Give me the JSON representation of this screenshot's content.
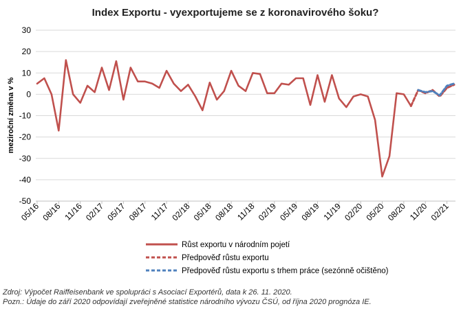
{
  "chart_data": {
    "type": "line",
    "title": "Index Exportu - vyexportujeme se z koronavirového šoku?",
    "ylabel": "meziroční změna v %",
    "xlabel": "",
    "ylim": [
      -50,
      30
    ],
    "yticks": [
      30,
      20,
      10,
      0,
      -10,
      -20,
      -30,
      -40,
      -50
    ],
    "grid": "horizontal",
    "legend_position": "bottom",
    "x_start": "2016-05",
    "xtick_labels": [
      "05/16",
      "08/16",
      "11/16",
      "02/17",
      "05/17",
      "08/17",
      "11/17",
      "02/18",
      "05/18",
      "08/18",
      "11/18",
      "02/19",
      "05/19",
      "08/19",
      "11/19",
      "02/20",
      "05/20",
      "08/20",
      "11/20",
      "02/21"
    ],
    "series": [
      {
        "name": "Růst exportu v národním pojetí",
        "color": "#c0504d",
        "style": "solid",
        "x": [
          "2016-05",
          "2016-06",
          "2016-07",
          "2016-08",
          "2016-09",
          "2016-10",
          "2016-11",
          "2016-12",
          "2017-01",
          "2017-02",
          "2017-03",
          "2017-04",
          "2017-05",
          "2017-06",
          "2017-07",
          "2017-08",
          "2017-09",
          "2017-10",
          "2017-11",
          "2017-12",
          "2018-01",
          "2018-02",
          "2018-03",
          "2018-04",
          "2018-05",
          "2018-06",
          "2018-07",
          "2018-08",
          "2018-09",
          "2018-10",
          "2018-11",
          "2018-12",
          "2019-01",
          "2019-02",
          "2019-03",
          "2019-04",
          "2019-05",
          "2019-06",
          "2019-07",
          "2019-08",
          "2019-09",
          "2019-10",
          "2019-11",
          "2019-12",
          "2020-01",
          "2020-02",
          "2020-03",
          "2020-04",
          "2020-05",
          "2020-06",
          "2020-07",
          "2020-08",
          "2020-09"
        ],
        "values": [
          5,
          7.5,
          0,
          -17,
          16,
          0,
          -4,
          4,
          1,
          12.5,
          2,
          15.5,
          -2.5,
          12.5,
          6,
          6,
          5,
          3,
          11,
          5,
          1.5,
          4.5,
          -1,
          -7.5,
          5.5,
          -2.5,
          1.5,
          11,
          4,
          1.5,
          10,
          9.5,
          0.5,
          0.5,
          5,
          4.5,
          7.5,
          7.5,
          -5,
          9,
          -3.5,
          9,
          -2,
          -6,
          -1,
          0,
          -1,
          -12,
          -38.5,
          -29,
          0.5,
          0,
          -5.5
        ]
      },
      {
        "name": "Předpověď růstu exportu",
        "color": "#c0504d",
        "style": "dashed",
        "x": [
          "2020-09",
          "2020-10",
          "2020-11",
          "2020-12",
          "2021-01",
          "2021-02",
          "2021-03"
        ],
        "values": [
          -5.5,
          2,
          0.5,
          2,
          -1,
          3,
          4.5
        ]
      },
      {
        "name": "Předpověď růstu exportu s trhem práce (sezónně očištěno)",
        "color": "#4f81bd",
        "style": "dashed",
        "x": [
          "2020-10",
          "2020-11",
          "2020-12",
          "2021-01",
          "2021-02",
          "2021-03"
        ],
        "values": [
          2,
          1,
          1.5,
          -0.5,
          4,
          5
        ]
      }
    ]
  },
  "notes": {
    "source": "Zdroj: Výpočet Raiffeisenbank ve spolupráci s Asociací Exportérů, data k 26. 11. 2020.",
    "remark": "Pozn.: Údaje do září 2020 odpovídají zveřejněné statistice národního vývozu ČSÚ, od října 2020 prognóza IE."
  }
}
